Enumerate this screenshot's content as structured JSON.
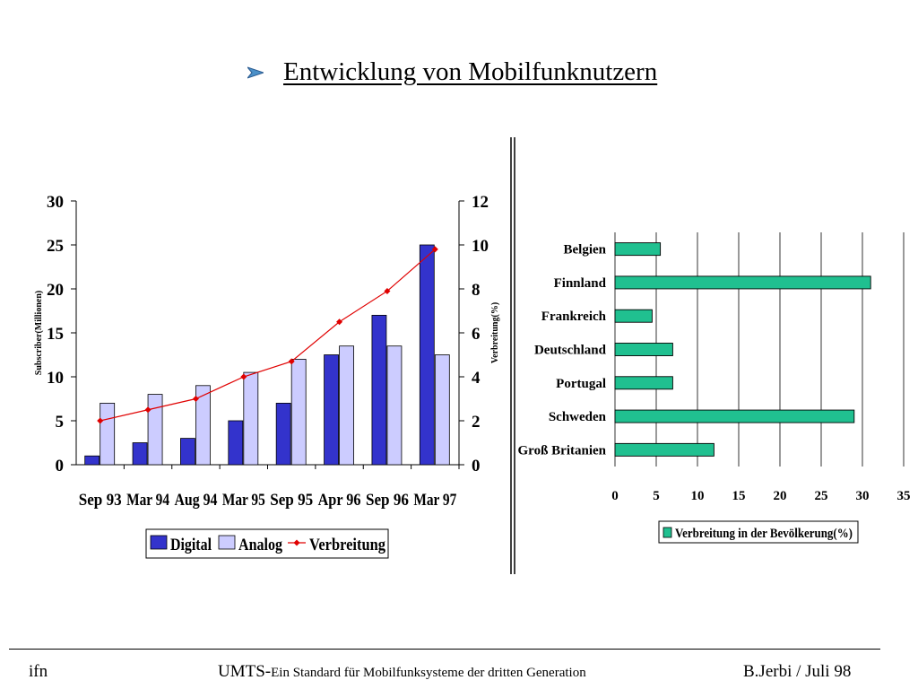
{
  "slide": {
    "title": "Entwicklung von Mobilfunknutzern",
    "footer": {
      "left": "ifn",
      "center_main": "UMTS-",
      "center_small": "Ein Standard für Mobilfunksysteme der dritten Generation",
      "right": "B.Jerbi / Juli 98"
    }
  },
  "colors": {
    "digital": "#3333CC",
    "analog": "#CCCCFF",
    "line": "#E00000",
    "hbar": "#20C090"
  },
  "chart_data": [
    {
      "type": "bar",
      "categories": [
        "Sep 93",
        "Mar 94",
        "Aug 94",
        "Mar 95",
        "Sep 95",
        "Apr 96",
        "Sep 96",
        "Mar 97"
      ],
      "series": [
        {
          "name": "Digital",
          "kind": "bar",
          "axis": "left",
          "values": [
            1,
            2.5,
            3,
            5,
            7,
            12.5,
            17,
            25
          ]
        },
        {
          "name": "Analog",
          "kind": "bar",
          "axis": "left",
          "values": [
            7,
            8,
            9,
            10.5,
            12,
            13.5,
            13.5,
            12.5
          ]
        },
        {
          "name": "Verbreitung",
          "kind": "line",
          "axis": "right",
          "values": [
            2,
            2.5,
            3,
            4,
            4.7,
            6.5,
            7.9,
            9.8
          ]
        }
      ],
      "ylabel": "Subscriber(Millionen)",
      "y2label": "Verbreitung(%)",
      "ylim": [
        0,
        30
      ],
      "yticks": [
        0,
        5,
        10,
        15,
        20,
        25,
        30
      ],
      "y2lim": [
        0,
        12
      ],
      "y2ticks": [
        0,
        2,
        4,
        6,
        8,
        10,
        12
      ],
      "legend": "bottom"
    },
    {
      "type": "bar",
      "orientation": "horizontal",
      "categories": [
        "Belgien",
        "Finnland",
        "Frankreich",
        "Deutschland",
        "Portugal",
        "Schweden",
        "Groß Britanien"
      ],
      "series": [
        {
          "name": "Verbreitung in der Bevölkerung(%)",
          "values": [
            5.5,
            31,
            4.5,
            7,
            7,
            29,
            12
          ]
        }
      ],
      "xlim": [
        0,
        35
      ],
      "xticks": [
        0,
        5,
        10,
        15,
        20,
        25,
        30,
        35
      ],
      "grid": true,
      "legend": "bottom"
    }
  ]
}
